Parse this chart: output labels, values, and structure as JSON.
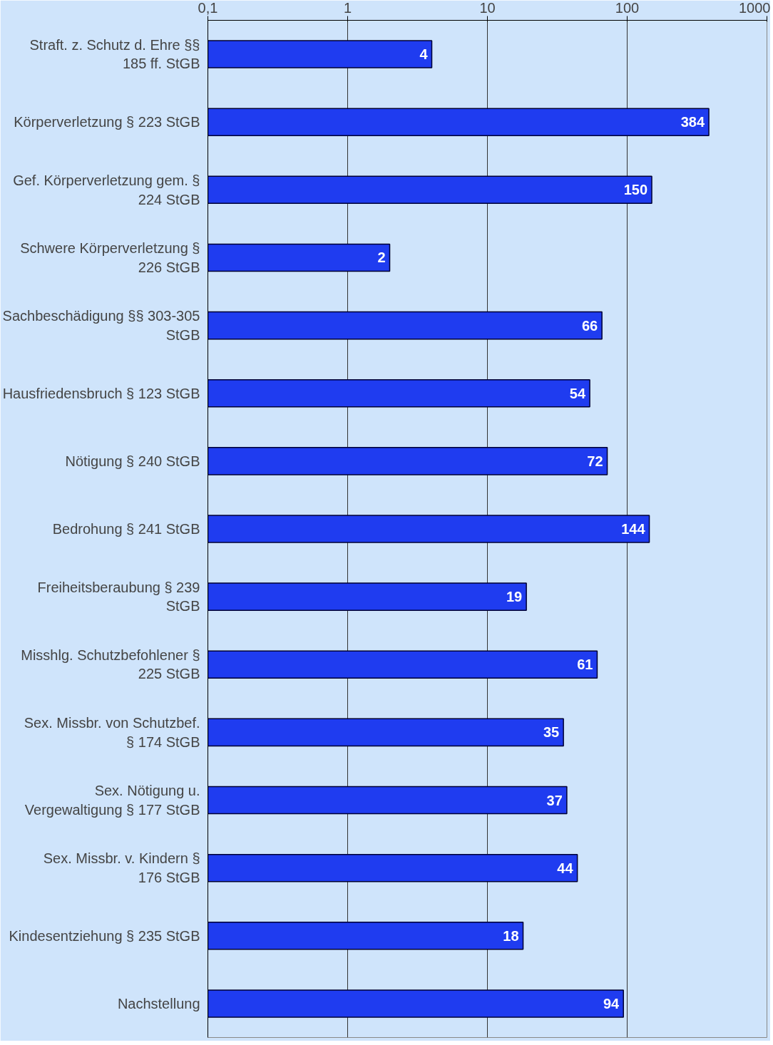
{
  "chart_data": {
    "type": "bar",
    "orientation": "horizontal",
    "log": "x",
    "categories": [
      "Straft. z. Schutz d. Ehre §§ 185 ff. StGB",
      "Körperverletzung § 223 StGB",
      "Gef. Körperverletzung gem. § 224 StGB",
      "Schwere Körperverletzung § 226 StGB",
      "Sachbeschädigung §§ 303-305 StGB",
      "Hausfriedensbruch § 123 StGB",
      "Nötigung § 240 StGB",
      "Bedrohung § 241 StGB",
      "Freiheitsberaubung § 239 StGB",
      "Misshlg. Schutzbefohlener § 225 StGB",
      "Sex. Missbr. von Schutzbef. § 174 StGB",
      "Sex. Nötigung u. Vergewaltigung § 177 StGB",
      "Sex. Missbr. v. Kindern § 176 StGB",
      "Kindesentziehung § 235 StGB",
      "Nachstellung"
    ],
    "values": [
      4,
      384,
      150,
      2,
      66,
      54,
      72,
      144,
      19,
      61,
      35,
      37,
      44,
      18,
      94
    ],
    "color": "#1f3cf0",
    "data_labels": true,
    "grid": "x",
    "xlim": [
      0.1,
      1000
    ],
    "xticks": [
      {
        "value": 0.1,
        "label": "0,1"
      },
      1,
      10,
      100,
      1000
    ]
  }
}
